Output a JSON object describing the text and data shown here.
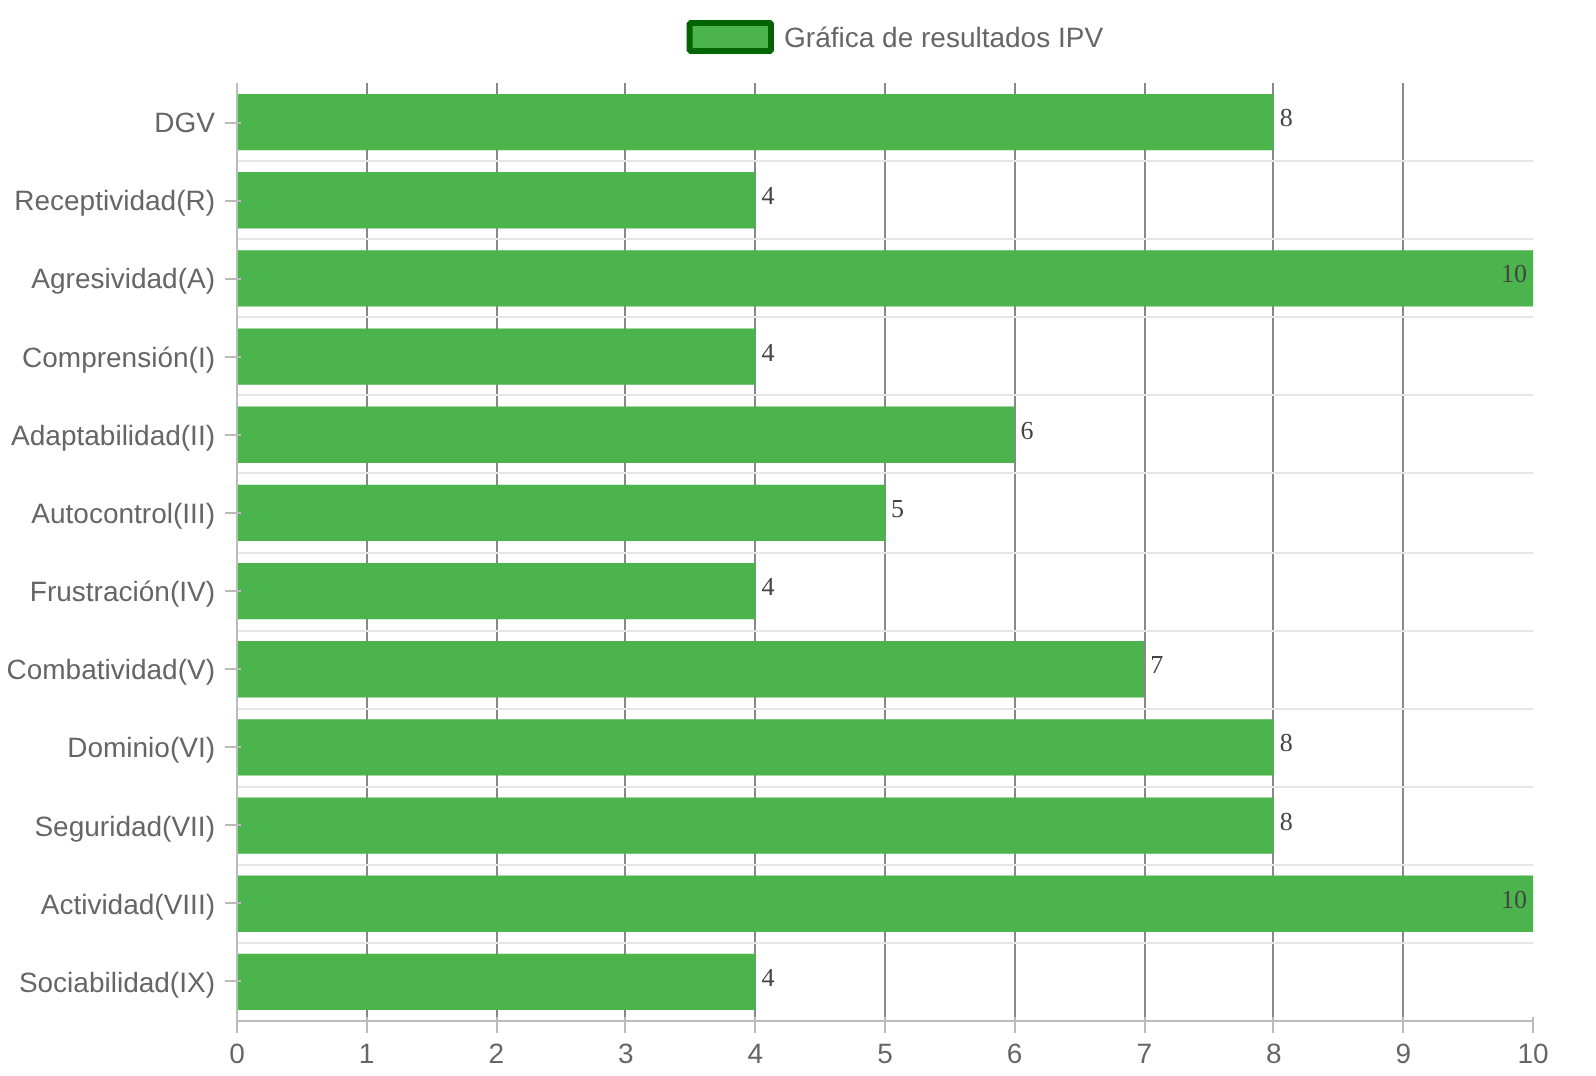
{
  "chart_data": {
    "type": "bar",
    "orientation": "horizontal",
    "categories": [
      "DGV",
      "Receptividad(R)",
      "Agresividad(A)",
      "Comprensión(I)",
      "Adaptabilidad(II)",
      "Autocontrol(III)",
      "Frustración(IV)",
      "Combatividad(V)",
      "Dominio(VI)",
      "Seguridad(VII)",
      "Actividad(VIII)",
      "Sociabilidad(IX)"
    ],
    "series": [
      {
        "name": "Gráfica de resultados IPV",
        "color": "#4cb44c",
        "values": [
          8,
          4,
          10,
          4,
          6,
          5,
          4,
          7,
          8,
          8,
          10,
          4
        ]
      }
    ],
    "xlim": [
      0,
      10
    ],
    "xticks": [
      0,
      1,
      2,
      3,
      4,
      5,
      6,
      7,
      8,
      9,
      10
    ],
    "grid": true,
    "legend": "top",
    "data_labels": true
  }
}
